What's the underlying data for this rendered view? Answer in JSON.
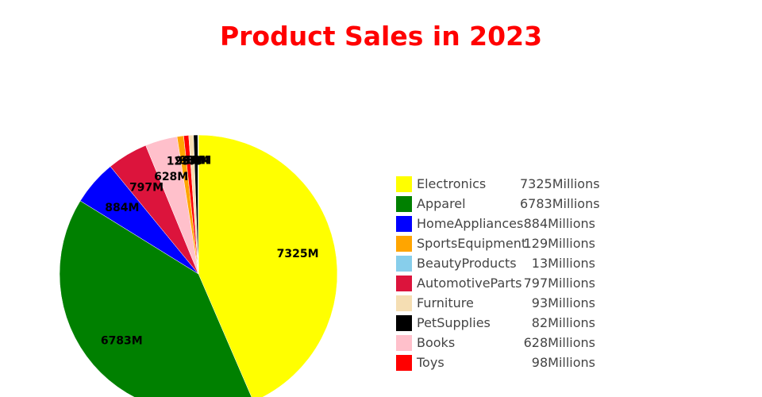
{
  "chart_data": {
    "type": "pie",
    "title": "Product Sales in 2023",
    "value_suffix": "Millions",
    "label_suffix": "M",
    "title_color": "#ff0000",
    "start": "12 o'clock",
    "direction": "clockwise",
    "legend_position": "right",
    "slices": [
      {
        "name": "Electronics",
        "value": 7325,
        "color": "#ffff00"
      },
      {
        "name": "Apparel",
        "value": 6783,
        "color": "#008000"
      },
      {
        "name": "HomeAppliances",
        "value": 884,
        "color": "#0000ff"
      },
      {
        "name": "AutomotiveParts",
        "value": 797,
        "color": "#dc143c"
      },
      {
        "name": "Books",
        "value": 628,
        "color": "#ffc0cb"
      },
      {
        "name": "SportsEquipment",
        "value": 129,
        "color": "#ffa500"
      },
      {
        "name": "Toys",
        "value": 98,
        "color": "#ff0000"
      },
      {
        "name": "Furniture",
        "value": 93,
        "color": "#f5deb3"
      },
      {
        "name": "PetSupplies",
        "value": 82,
        "color": "#000000"
      },
      {
        "name": "BeautyProducts",
        "value": 13,
        "color": "#87ceeb"
      }
    ],
    "legend_order": [
      "Electronics",
      "Apparel",
      "HomeAppliances",
      "SportsEquipment",
      "BeautyProducts",
      "AutomotiveParts",
      "Furniture",
      "PetSupplies",
      "Books",
      "Toys"
    ]
  }
}
